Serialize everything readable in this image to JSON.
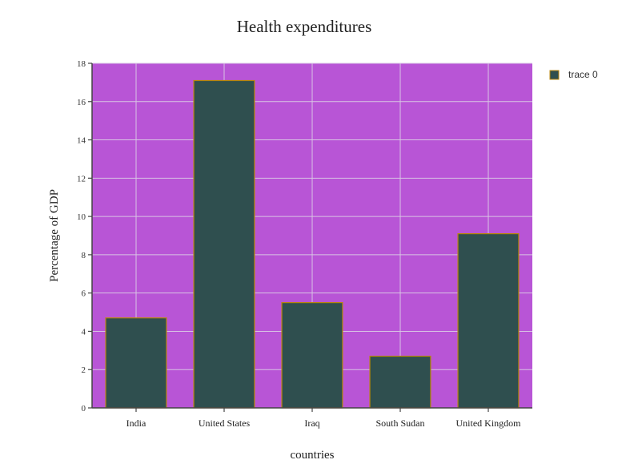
{
  "chart_data": {
    "type": "bar",
    "title": "Health expenditures",
    "xlabel": "countries",
    "ylabel": "Percentage of GDP",
    "categories": [
      "India",
      "United States",
      "Iraq",
      "South Sudan",
      "United Kingdom"
    ],
    "series": [
      {
        "name": "trace 0",
        "values": [
          4.7,
          17.1,
          5.5,
          2.7,
          9.1
        ]
      }
    ],
    "ylim": [
      0,
      18
    ],
    "yticks": [
      0,
      2,
      4,
      6,
      8,
      10,
      12,
      14,
      16,
      18
    ],
    "grid": true,
    "legend_position": "top-right",
    "colors": {
      "plot_background": "#b855d6",
      "bar_fill": "#2f4f4f",
      "bar_stroke": "#b8860b",
      "grid": "#d8c4e4",
      "axis": "#444444"
    }
  }
}
